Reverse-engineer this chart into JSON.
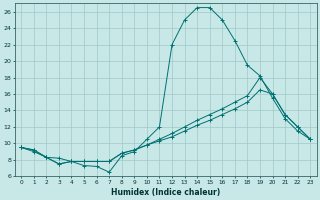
{
  "xlabel": "Humidex (Indice chaleur)",
  "background_color": "#c8e8e8",
  "grid_color": "#a0c8c8",
  "line_color": "#007070",
  "xlim": [
    -0.5,
    23.5
  ],
  "ylim": [
    6,
    27
  ],
  "xticks": [
    0,
    1,
    2,
    3,
    4,
    5,
    6,
    7,
    8,
    9,
    10,
    11,
    12,
    13,
    14,
    15,
    16,
    17,
    18,
    19,
    20,
    21,
    22,
    23
  ],
  "yticks": [
    6,
    8,
    10,
    12,
    14,
    16,
    18,
    20,
    22,
    24,
    26
  ],
  "s0_x": [
    0,
    1,
    2,
    3,
    4,
    5,
    6,
    7,
    8,
    9,
    10,
    11,
    12,
    13,
    14,
    15,
    16,
    17,
    18,
    19,
    20,
    21,
    22,
    23
  ],
  "s0_y": [
    9.5,
    9.0,
    8.3,
    8.2,
    7.8,
    7.3,
    7.2,
    6.5,
    8.5,
    9.0,
    10.5,
    12.0,
    22.0,
    25.0,
    26.5,
    26.5,
    25.0,
    22.5,
    19.5,
    18.2,
    15.5,
    13.0,
    11.5,
    10.5
  ],
  "s1_x": [
    0,
    1,
    2,
    3,
    4,
    5,
    6,
    7,
    8,
    9,
    10,
    11,
    12,
    13,
    14,
    15,
    16,
    17,
    18,
    19,
    20,
    21,
    22,
    23
  ],
  "s1_y": [
    9.5,
    9.2,
    8.3,
    7.5,
    7.8,
    7.8,
    7.8,
    7.8,
    8.8,
    9.2,
    9.8,
    10.5,
    11.2,
    12.0,
    12.8,
    13.5,
    14.2,
    15.0,
    15.8,
    18.0,
    16.0,
    13.5,
    12.0,
    10.5
  ],
  "s2_x": [
    0,
    1,
    2,
    3,
    4,
    5,
    6,
    7,
    8,
    9,
    10,
    11,
    12,
    13,
    14,
    15,
    16,
    17,
    18,
    19,
    20,
    21,
    22,
    23
  ],
  "s2_y": [
    9.5,
    9.2,
    8.3,
    7.5,
    7.8,
    7.8,
    7.8,
    7.8,
    8.8,
    9.2,
    9.8,
    10.3,
    10.8,
    11.5,
    12.2,
    12.8,
    13.5,
    14.2,
    15.0,
    16.5,
    16.0,
    13.5,
    12.0,
    10.5
  ]
}
